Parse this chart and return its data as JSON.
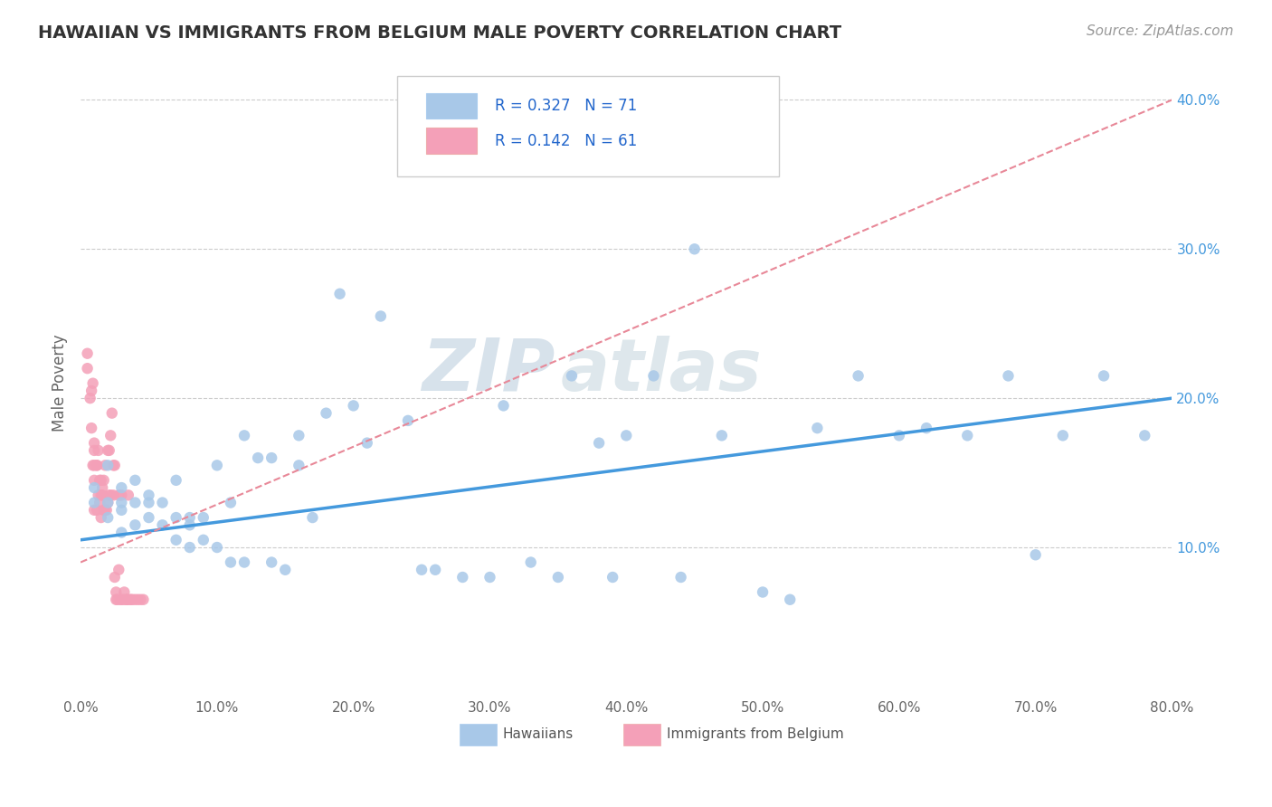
{
  "title": "HAWAIIAN VS IMMIGRANTS FROM BELGIUM MALE POVERTY CORRELATION CHART",
  "source": "Source: ZipAtlas.com",
  "ylabel": "Male Poverty",
  "r_hawaiians": 0.327,
  "n_hawaiians": 71,
  "r_belgium": 0.142,
  "n_belgium": 61,
  "color_hawaiians": "#a8c8e8",
  "color_belgium": "#f4a0b8",
  "trendline_hawaiians": "#4499dd",
  "trendline_belgium": "#e88898",
  "xlim": [
    0.0,
    0.8
  ],
  "ylim": [
    0.0,
    0.42
  ],
  "xticks": [
    0.0,
    0.1,
    0.2,
    0.3,
    0.4,
    0.5,
    0.6,
    0.7,
    0.8
  ],
  "yticks_right": [
    0.1,
    0.2,
    0.3,
    0.4
  ],
  "background_color": "#ffffff",
  "watermark_zip": "ZIP",
  "watermark_atlas": "atlas",
  "hawaiians_x": [
    0.01,
    0.01,
    0.02,
    0.02,
    0.02,
    0.03,
    0.03,
    0.03,
    0.03,
    0.04,
    0.04,
    0.04,
    0.05,
    0.05,
    0.05,
    0.06,
    0.06,
    0.07,
    0.07,
    0.07,
    0.08,
    0.08,
    0.08,
    0.09,
    0.09,
    0.1,
    0.1,
    0.11,
    0.11,
    0.12,
    0.12,
    0.13,
    0.14,
    0.14,
    0.15,
    0.16,
    0.16,
    0.17,
    0.18,
    0.19,
    0.2,
    0.21,
    0.22,
    0.24,
    0.25,
    0.26,
    0.28,
    0.3,
    0.31,
    0.33,
    0.35,
    0.36,
    0.38,
    0.39,
    0.4,
    0.42,
    0.44,
    0.45,
    0.47,
    0.5,
    0.52,
    0.54,
    0.57,
    0.6,
    0.62,
    0.65,
    0.68,
    0.7,
    0.72,
    0.75,
    0.78
  ],
  "hawaiians_y": [
    0.13,
    0.14,
    0.12,
    0.13,
    0.155,
    0.11,
    0.125,
    0.14,
    0.13,
    0.115,
    0.13,
    0.145,
    0.12,
    0.135,
    0.13,
    0.115,
    0.13,
    0.105,
    0.12,
    0.145,
    0.1,
    0.115,
    0.12,
    0.105,
    0.12,
    0.1,
    0.155,
    0.09,
    0.13,
    0.09,
    0.175,
    0.16,
    0.09,
    0.16,
    0.085,
    0.155,
    0.175,
    0.12,
    0.19,
    0.27,
    0.195,
    0.17,
    0.255,
    0.185,
    0.085,
    0.085,
    0.08,
    0.08,
    0.195,
    0.09,
    0.08,
    0.215,
    0.17,
    0.08,
    0.175,
    0.215,
    0.08,
    0.3,
    0.175,
    0.07,
    0.065,
    0.18,
    0.215,
    0.175,
    0.18,
    0.175,
    0.215,
    0.095,
    0.175,
    0.215,
    0.175
  ],
  "belgium_x": [
    0.005,
    0.005,
    0.007,
    0.008,
    0.008,
    0.009,
    0.009,
    0.01,
    0.01,
    0.01,
    0.01,
    0.01,
    0.012,
    0.012,
    0.012,
    0.013,
    0.013,
    0.014,
    0.014,
    0.015,
    0.015,
    0.015,
    0.016,
    0.016,
    0.017,
    0.017,
    0.018,
    0.018,
    0.019,
    0.02,
    0.02,
    0.021,
    0.021,
    0.022,
    0.022,
    0.023,
    0.024,
    0.024,
    0.025,
    0.025,
    0.026,
    0.026,
    0.027,
    0.028,
    0.028,
    0.029,
    0.03,
    0.03,
    0.031,
    0.032,
    0.033,
    0.034,
    0.034,
    0.035,
    0.036,
    0.037,
    0.038,
    0.04,
    0.042,
    0.044,
    0.046
  ],
  "belgium_y": [
    0.22,
    0.23,
    0.2,
    0.18,
    0.205,
    0.21,
    0.155,
    0.145,
    0.165,
    0.155,
    0.125,
    0.17,
    0.155,
    0.125,
    0.155,
    0.165,
    0.135,
    0.13,
    0.145,
    0.135,
    0.12,
    0.145,
    0.135,
    0.14,
    0.145,
    0.125,
    0.125,
    0.155,
    0.125,
    0.165,
    0.13,
    0.135,
    0.165,
    0.135,
    0.175,
    0.19,
    0.135,
    0.155,
    0.08,
    0.155,
    0.07,
    0.065,
    0.065,
    0.085,
    0.135,
    0.065,
    0.065,
    0.135,
    0.065,
    0.07,
    0.065,
    0.065,
    0.065,
    0.135,
    0.065,
    0.065,
    0.065,
    0.065,
    0.065,
    0.065,
    0.065
  ],
  "hawaii_trend_x0": 0.0,
  "hawaii_trend_x1": 0.8,
  "hawaii_trend_y0": 0.105,
  "hawaii_trend_y1": 0.2,
  "belgium_trend_x0": 0.0,
  "belgium_trend_x1": 0.8,
  "belgium_trend_y0": 0.09,
  "belgium_trend_y1": 0.4
}
